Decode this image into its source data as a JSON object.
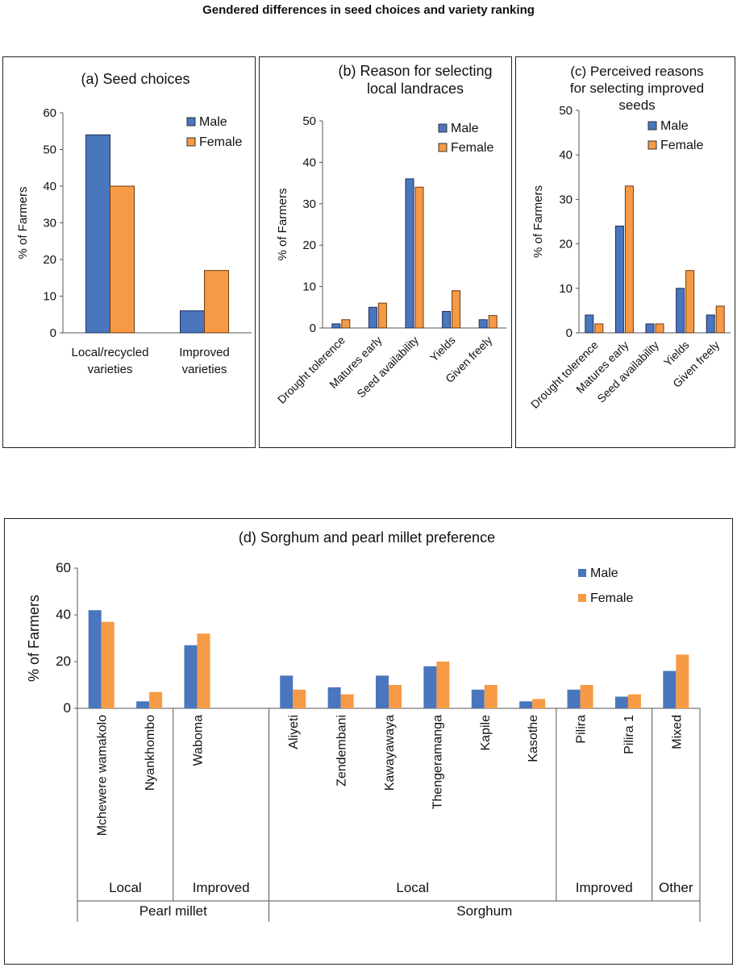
{
  "figure_title": "Gendered differences in seed choices and variety ranking",
  "colors": {
    "male": "#4a76be",
    "female": "#f79a45"
  },
  "chart_data": [
    {
      "id": "a",
      "type": "bar",
      "title": "(a) Seed choices",
      "ylabel": "% of Farmers",
      "ylim": [
        0,
        60
      ],
      "yticks": [
        0,
        10,
        20,
        30,
        40,
        50,
        60
      ],
      "categories": [
        "Local/recycled varieties",
        "Improved varieties"
      ],
      "category_lines": [
        [
          "Local/recycled",
          "varieties"
        ],
        [
          "Improved",
          "varieties"
        ]
      ],
      "legend": [
        "Male",
        "Female"
      ],
      "series": [
        {
          "name": "Male",
          "values": [
            54,
            6
          ]
        },
        {
          "name": "Female",
          "values": [
            40,
            17
          ]
        }
      ]
    },
    {
      "id": "b",
      "type": "bar",
      "title": "(b) Reason for selecting local landraces",
      "title_lines": [
        "(b) Reason for selecting",
        "local landraces"
      ],
      "ylabel": "% of Farmers",
      "ylim": [
        0,
        50
      ],
      "yticks": [
        0,
        10,
        20,
        30,
        40,
        50
      ],
      "categories": [
        "Drought tolerence",
        "Matures early",
        "Seed availability",
        "Yields",
        "Given freely"
      ],
      "legend": [
        "Male",
        "Female"
      ],
      "series": [
        {
          "name": "Male",
          "values": [
            1,
            5,
            36,
            4,
            2
          ]
        },
        {
          "name": "Female",
          "values": [
            2,
            6,
            34,
            9,
            3
          ]
        }
      ]
    },
    {
      "id": "c",
      "type": "bar",
      "title": "(c) Perceived reasons for selecting improved seeds",
      "title_lines": [
        "(c) Perceived reasons",
        "for selecting improved",
        "seeds"
      ],
      "ylabel": "% of Farmers",
      "ylim": [
        0,
        50
      ],
      "yticks": [
        0,
        10,
        20,
        30,
        40,
        50
      ],
      "categories": [
        "Drought tolerence",
        "Matures early",
        "Seed availability",
        "Yields",
        "Given freely"
      ],
      "legend": [
        "Male",
        "Female"
      ],
      "series": [
        {
          "name": "Male",
          "values": [
            4,
            24,
            2,
            10,
            4
          ]
        },
        {
          "name": "Female",
          "values": [
            2,
            33,
            2,
            14,
            6
          ]
        }
      ]
    },
    {
      "id": "d",
      "type": "bar",
      "title": "(d) Sorghum and pearl millet preference",
      "ylabel": "% of Farmers",
      "ylim": [
        0,
        60
      ],
      "yticks": [
        0,
        20,
        40,
        60
      ],
      "categories": [
        "Mchewere wamakolo",
        "Nyankhombo",
        "Waboma",
        "",
        "Aliyeti",
        "Zendembani",
        "Kawayawaya",
        "Thengeramanga",
        "Kapile",
        "Kasothe",
        "Pilira",
        "Pilira 1",
        "Mixed"
      ],
      "legend": [
        "Male",
        "Female"
      ],
      "series": [
        {
          "name": "Male",
          "values": [
            42,
            3,
            27,
            null,
            14,
            9,
            14,
            18,
            8,
            3,
            8,
            5,
            16
          ]
        },
        {
          "name": "Female",
          "values": [
            37,
            7,
            32,
            null,
            8,
            6,
            10,
            20,
            10,
            4,
            10,
            6,
            23
          ]
        }
      ],
      "group_labels": [
        {
          "label": "Local",
          "from": 0,
          "to": 1
        },
        {
          "label": "Improved",
          "from": 2,
          "to": 3
        },
        {
          "label": "Local",
          "from": 4,
          "to": 9
        },
        {
          "label": "Improved",
          "from": 10,
          "to": 11
        },
        {
          "label": "Other",
          "from": 12,
          "to": 12
        }
      ],
      "crop_labels": [
        {
          "label": "Pearl millet",
          "from": 0,
          "to": 3
        },
        {
          "label": "Sorghum",
          "from": 4,
          "to": 12
        }
      ]
    }
  ]
}
